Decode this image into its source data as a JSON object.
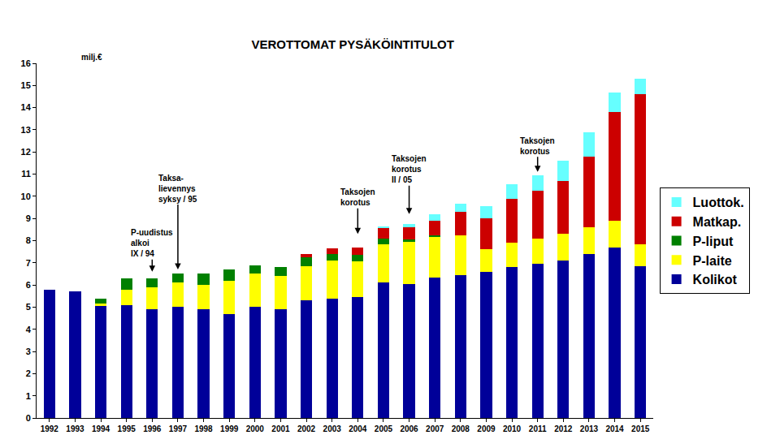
{
  "chart_data": {
    "type": "bar",
    "title": "VEROTTOMAT PYSÄKÖINTITULOT",
    "y_label": "milj.€",
    "stacked": true,
    "grid": false,
    "legend": "right",
    "categories": [
      "1992",
      "1993",
      "1994",
      "1995",
      "1996",
      "1997",
      "1998",
      "1999",
      "2000",
      "2001",
      "2002",
      "2003",
      "2004",
      "2005",
      "2006",
      "2007",
      "2008",
      "2009",
      "2010",
      "2011",
      "2012",
      "2013",
      "2014",
      "2015"
    ],
    "series": [
      {
        "name": "Kolikot",
        "color": "#000099",
        "values": [
          5.8,
          5.7,
          5.05,
          5.1,
          4.9,
          5.0,
          4.9,
          4.7,
          5.0,
          4.9,
          5.3,
          5.4,
          5.45,
          6.1,
          6.05,
          6.35,
          6.45,
          6.6,
          6.8,
          6.95,
          7.1,
          7.4,
          7.7,
          6.85
        ]
      },
      {
        "name": "P-laite",
        "color": "#FFFF00",
        "values": [
          0,
          0,
          0.1,
          0.7,
          1.0,
          1.1,
          1.1,
          1.5,
          1.5,
          1.5,
          1.55,
          1.7,
          1.6,
          1.75,
          1.9,
          1.85,
          1.8,
          1.0,
          1.1,
          1.15,
          1.2,
          1.2,
          1.2,
          1.0
        ]
      },
      {
        "name": "P-liput",
        "color": "#008000",
        "values": [
          0,
          0,
          0.25,
          0.5,
          0.4,
          0.4,
          0.5,
          0.5,
          0.4,
          0.4,
          0.4,
          0.3,
          0.3,
          0.25,
          0.1,
          0.05,
          0,
          0,
          0,
          0,
          0,
          0,
          0,
          0
        ]
      },
      {
        "name": "Matkap.",
        "color": "#CC0000",
        "values": [
          0,
          0,
          0,
          0,
          0,
          0,
          0,
          0,
          0,
          0,
          0.15,
          0.25,
          0.35,
          0.45,
          0.55,
          0.65,
          1.05,
          1.4,
          2.0,
          2.15,
          2.4,
          3.2,
          4.9,
          6.75
        ]
      },
      {
        "name": "Luottok.",
        "color": "#66FFFF",
        "values": [
          0,
          0,
          0,
          0,
          0,
          0,
          0,
          0,
          0,
          0,
          0,
          0,
          0,
          0.1,
          0.15,
          0.3,
          0.35,
          0.55,
          0.65,
          0.7,
          0.9,
          1.1,
          0.9,
          0.7
        ]
      }
    ],
    "ylim": [
      0,
      16
    ],
    "yticks": [
      0,
      1,
      2,
      3,
      4,
      5,
      6,
      7,
      8,
      9,
      10,
      11,
      12,
      13,
      14,
      15,
      16
    ],
    "annotations": [
      {
        "text": "P-uudistus\nalkoi\nIX / 94",
        "x": "1996",
        "y": 6.6
      },
      {
        "text": "Taksa-\nlievennys\nsyksy / 95",
        "x": "1997",
        "y": 6.7
      },
      {
        "text": "Taksojen\nkorotus",
        "x": "2004",
        "y": 8.3
      },
      {
        "text": "Taksojen\nkorotus\nII / 05",
        "x": "2006",
        "y": 9.2
      },
      {
        "text": "Taksojen\nkorotus",
        "x": "2011",
        "y": 11.1
      }
    ]
  }
}
